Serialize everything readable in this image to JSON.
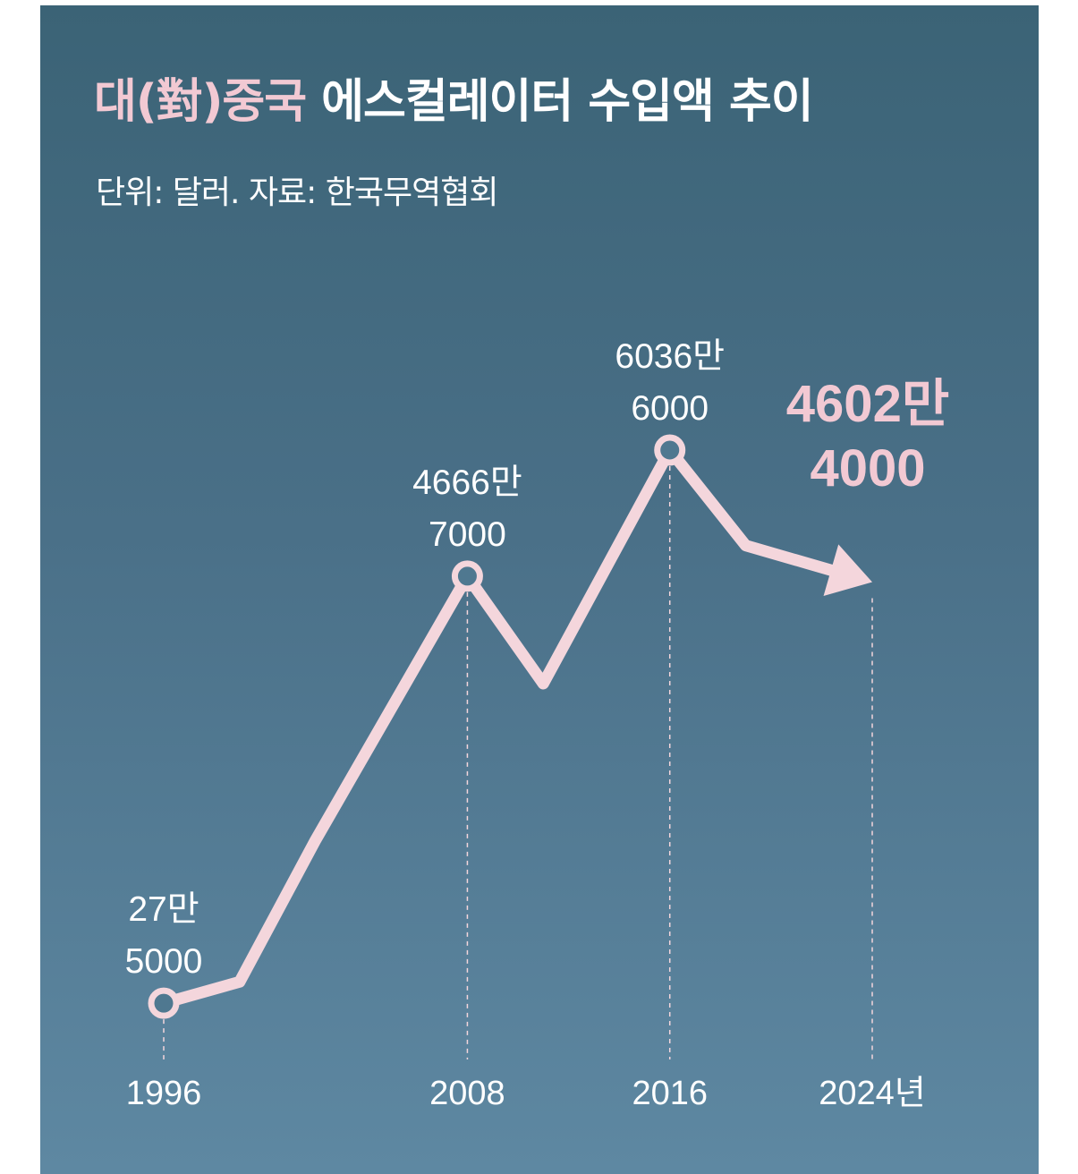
{
  "chart_data": {
    "type": "line",
    "title_highlight": "대(對)중국",
    "title_rest": "에스컬레이터 수입액 추이",
    "subtitle": "단위: 달러. 자료: 한국무역협회",
    "unit_suffix": "년",
    "x_ticks": [
      "1996",
      "2008",
      "2016",
      "2024년"
    ],
    "series": [
      {
        "points": [
          {
            "x": 1996,
            "y": 275000
          },
          {
            "x": 1999,
            "y": 2600000
          },
          {
            "x": 2002,
            "y": 18000000
          },
          {
            "x": 2008,
            "y": 46667000
          },
          {
            "x": 2011,
            "y": 35000000
          },
          {
            "x": 2016,
            "y": 60366000
          },
          {
            "x": 2019,
            "y": 50000000
          },
          {
            "x": 2024,
            "y": 46024000
          }
        ]
      }
    ],
    "annotations": [
      {
        "x": 1996,
        "line1": "27만",
        "line2": "5000",
        "emphasis": false
      },
      {
        "x": 2008,
        "line1": "4666만",
        "line2": "7000",
        "emphasis": false
      },
      {
        "x": 2016,
        "line1": "6036만",
        "line2": "6000",
        "emphasis": false
      },
      {
        "x": 2024,
        "line1": "4602만",
        "line2": "4000",
        "emphasis": true
      }
    ],
    "ylim": [
      0,
      70000000
    ],
    "grid": false,
    "colors": {
      "line": "#f4d6dc",
      "highlight": "#f2c9d3",
      "marker_fill": "#4f7890",
      "text": "#ffffff",
      "background_top": "#3b6376",
      "background_bottom": "#5e88a2"
    }
  }
}
